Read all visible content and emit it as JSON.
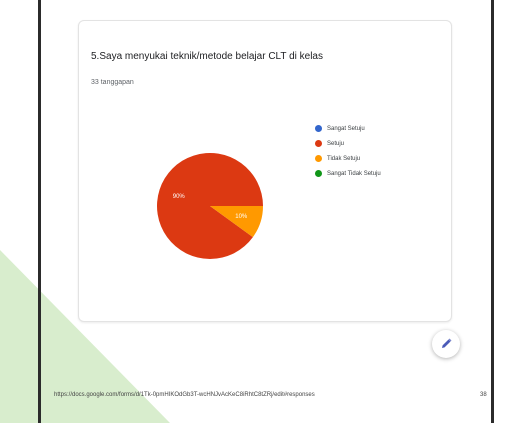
{
  "question": {
    "title": "5.Saya menyukai teknik/metode belajar CLT di kelas",
    "responses": "33 tanggapan"
  },
  "chart_data": {
    "type": "pie",
    "title": "5.Saya menyukai teknik/metode belajar CLT di kelas",
    "legend_position": "right",
    "slices": [
      {
        "label": "Sangat Setuju",
        "value": 0,
        "color": "#3366cc",
        "data_label": ""
      },
      {
        "label": "Setuju",
        "value": 90,
        "color": "#dc3912",
        "data_label": "90%"
      },
      {
        "label": "Tidak Setuju",
        "value": 10,
        "color": "#ff9900",
        "data_label": "10%"
      },
      {
        "label": "Sangat Tidak Setuju",
        "value": 0,
        "color": "#109618",
        "data_label": ""
      }
    ]
  },
  "footer": {
    "url": "https://docs.google.com/forms/d/1Tk-0pmHIKOdGb3T-wcHNJvAcKeC8iRhtC8tZRj/edit#responses",
    "page": "38"
  },
  "colors": {
    "accent_green": "#c8e6b8",
    "frame": "#2b2b2b"
  },
  "icons": {
    "edit": "pencil-icon"
  }
}
